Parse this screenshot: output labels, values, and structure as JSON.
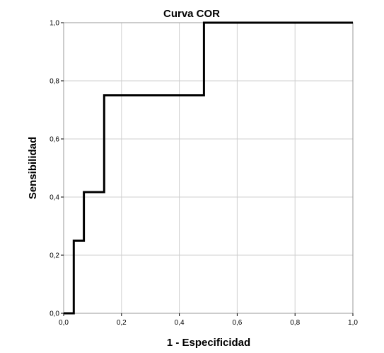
{
  "chart_data": {
    "type": "line",
    "title": "Curva COR",
    "xlabel": "1 - Especificidad",
    "ylabel": "Sensibilidad",
    "xlim": [
      0,
      1
    ],
    "ylim": [
      0,
      1
    ],
    "x_ticks": [
      "0,0",
      "0,2",
      "0,4",
      "0,6",
      "0,8",
      "1,0"
    ],
    "y_ticks": [
      "0,0",
      "0,2",
      "0,4",
      "0,6",
      "0,8",
      "1,0"
    ],
    "grid": true,
    "line_style": "step",
    "line_color": "#000000",
    "series": [
      {
        "x": [
          0.0,
          0.035,
          0.035,
          0.07,
          0.07,
          0.14,
          0.14,
          0.485,
          0.485,
          1.0
        ],
        "y": [
          0.0,
          0.0,
          0.25,
          0.25,
          0.417,
          0.417,
          0.75,
          0.75,
          1.0,
          1.0
        ]
      }
    ]
  }
}
